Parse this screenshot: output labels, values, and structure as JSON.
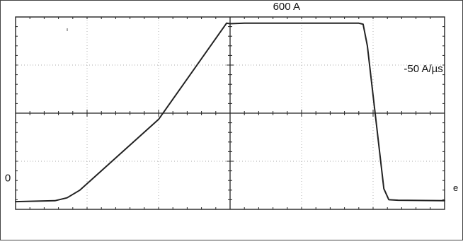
{
  "chart_data": {
    "type": "line",
    "title": "",
    "xlabel": "",
    "ylabel": "",
    "divisions": {
      "x": 6,
      "y": 4
    },
    "grid": true,
    "series": [
      {
        "color": "#222222",
        "points": [
          [
            0.0,
            -1.84
          ],
          [
            0.55,
            -1.82
          ],
          [
            0.72,
            -1.76
          ],
          [
            0.9,
            -1.6
          ],
          [
            2.0,
            -0.13
          ],
          [
            2.95,
            1.87
          ],
          [
            3.0,
            1.86
          ],
          [
            3.2,
            1.87
          ],
          [
            4.0,
            1.87
          ],
          [
            4.8,
            1.87
          ],
          [
            4.86,
            1.85
          ],
          [
            4.92,
            1.4
          ],
          [
            5.15,
            -1.57
          ],
          [
            5.22,
            -1.8
          ],
          [
            5.35,
            -1.81
          ],
          [
            6.0,
            -1.82
          ]
        ]
      }
    ],
    "annotations": [
      {
        "text": "600 A",
        "x": 3.6,
        "y": 2.15
      },
      {
        "text": "-50 A/µs",
        "x": 5.43,
        "y": 0.85
      },
      {
        "text": "0",
        "x": -0.15,
        "y": -1.42
      }
    ]
  }
}
